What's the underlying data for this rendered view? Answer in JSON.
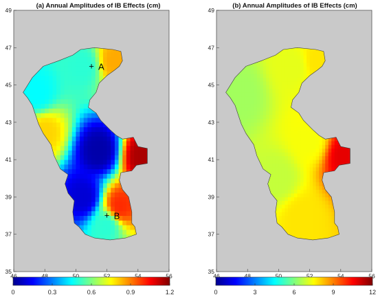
{
  "panels": [
    {
      "title": "(a) Annual Amplitudes of IB Effects (cm)",
      "lon_ticks": [
        "46",
        "48",
        "50",
        "52",
        "54",
        "56"
      ],
      "lat_ticks": [
        "35",
        "37",
        "39",
        "41",
        "43",
        "45",
        "47",
        "49"
      ],
      "colorbar_ticks": [
        "0",
        "0.3",
        "0.6",
        "0.9",
        "1.2"
      ],
      "markers": [
        {
          "symbol": "+",
          "label": "A",
          "lon": 51.0,
          "lat": 46.0
        },
        {
          "symbol": "+",
          "label": "B",
          "lon": 52.0,
          "lat": 38.0
        }
      ]
    },
    {
      "title": "(b) Annual Amplitudes of IB Effects (cm)",
      "lon_ticks": [
        "46",
        "48",
        "50",
        "52",
        "54",
        "56"
      ],
      "lat_ticks": [
        "35",
        "37",
        "39",
        "41",
        "43",
        "45",
        "47",
        "49"
      ],
      "colorbar_ticks": [
        "0",
        "3",
        "6",
        "9",
        "12"
      ],
      "markers": []
    }
  ],
  "chart_data": [
    {
      "type": "heatmap",
      "title": "(a) Annual Amplitudes of IB Effects (cm)",
      "xlim": [
        46,
        56
      ],
      "ylim": [
        35,
        49
      ],
      "colorbar_range": [
        0,
        1.2
      ],
      "colormap": "jet",
      "background": "#c9c9c9",
      "markers": [
        {
          "label": "A",
          "lon": 51.0,
          "lat": 46.0
        },
        {
          "label": "B",
          "lon": 52.0,
          "lat": 38.0
        }
      ],
      "field_samples": [
        {
          "lon": 51.5,
          "lat": 41.5,
          "value": 0.05
        },
        {
          "lon": 50.5,
          "lat": 39.0,
          "value": 0.1
        },
        {
          "lon": 47.5,
          "lat": 44.5,
          "value": 0.45
        },
        {
          "lon": 50.5,
          "lat": 46.0,
          "value": 0.5
        },
        {
          "lon": 52.5,
          "lat": 46.3,
          "value": 0.85
        },
        {
          "lon": 52.8,
          "lat": 38.5,
          "value": 1.0
        },
        {
          "lon": 54.3,
          "lat": 41.2,
          "value": 1.15
        },
        {
          "lon": 52.0,
          "lat": 37.5,
          "value": 0.5
        },
        {
          "lon": 48.0,
          "lat": 42.5,
          "value": 0.8
        }
      ]
    },
    {
      "type": "heatmap",
      "title": "(b) Annual Amplitudes of IB Effects (cm)",
      "xlim": [
        46,
        56
      ],
      "ylim": [
        35,
        49
      ],
      "colorbar_range": [
        0,
        12
      ],
      "colormap": "jet",
      "background": "#c9c9c9",
      "field_samples": [
        {
          "lon": 47.5,
          "lat": 44.5,
          "value": 6.4
        },
        {
          "lon": 51.0,
          "lat": 46.0,
          "value": 7.2
        },
        {
          "lon": 50.0,
          "lat": 40.0,
          "value": 6.8
        },
        {
          "lon": 51.5,
          "lat": 38.0,
          "value": 7.8
        },
        {
          "lon": 54.3,
          "lat": 41.2,
          "value": 10.8
        },
        {
          "lon": 52.5,
          "lat": 46.3,
          "value": 7.8
        },
        {
          "lon": 52.0,
          "lat": 42.0,
          "value": 7.4
        }
      ]
    }
  ]
}
